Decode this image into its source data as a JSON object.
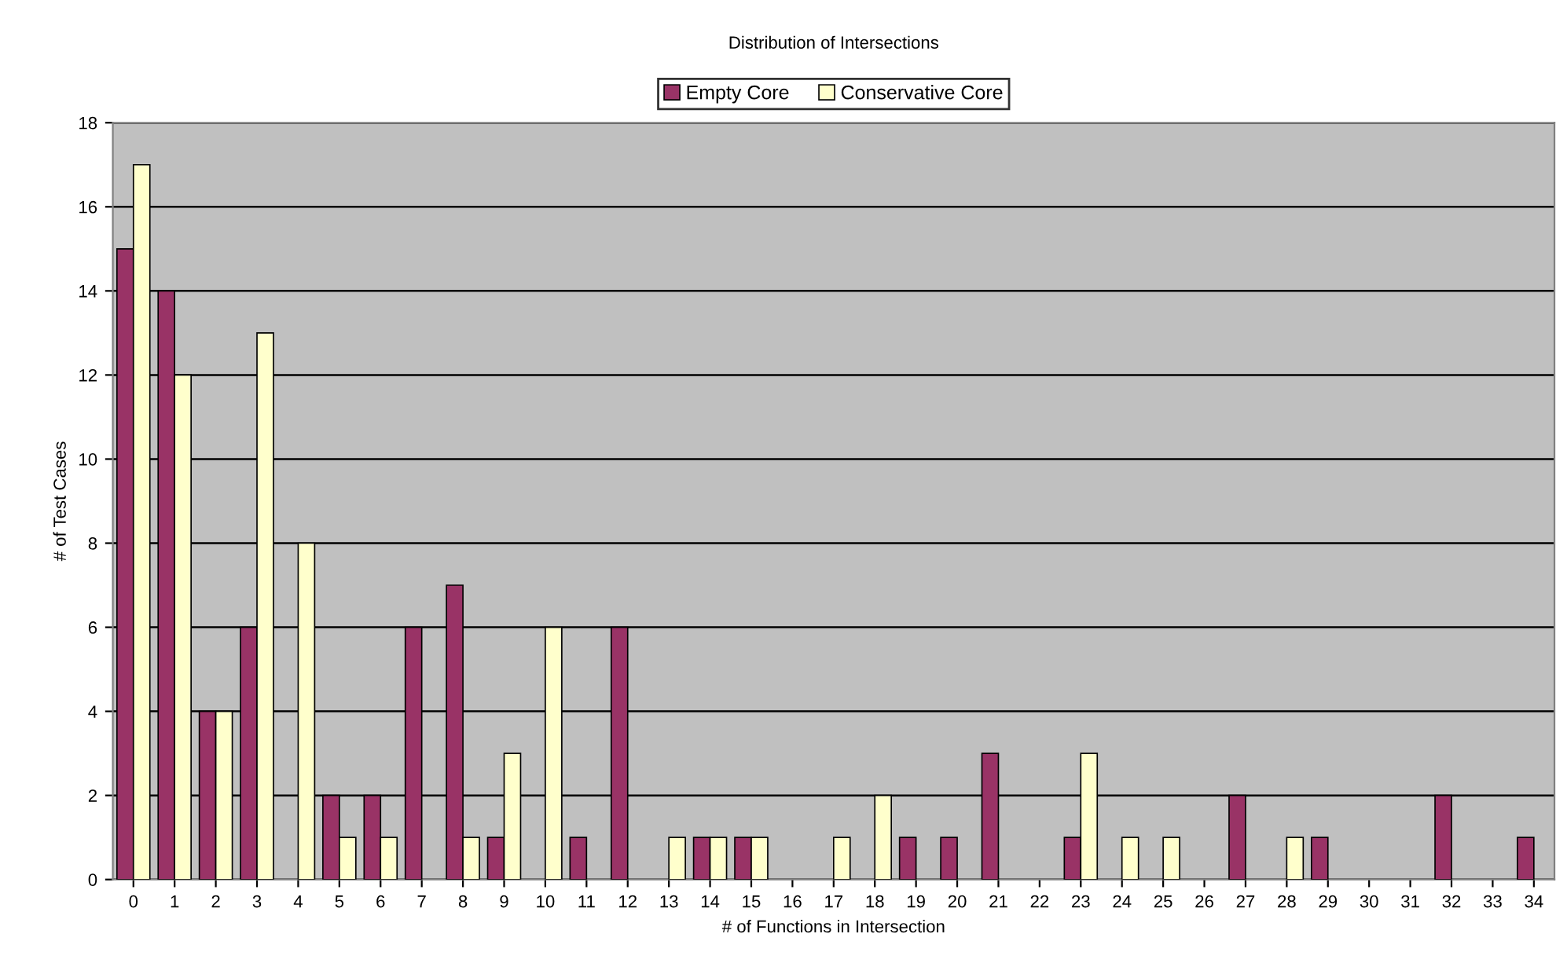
{
  "chart_data": {
    "type": "bar",
    "title": "Distribution of Intersections",
    "xlabel": "# of Functions in Intersection",
    "ylabel": "# of Test Cases",
    "categories": [
      "0",
      "1",
      "2",
      "3",
      "4",
      "5",
      "6",
      "7",
      "8",
      "9",
      "10",
      "11",
      "12",
      "13",
      "14",
      "15",
      "16",
      "17",
      "18",
      "19",
      "20",
      "21",
      "22",
      "23",
      "24",
      "25",
      "26",
      "27",
      "28",
      "29",
      "30",
      "31",
      "32",
      "33",
      "34"
    ],
    "series": [
      {
        "name": "Empty Core",
        "color": "#993366",
        "values": [
          15,
          14,
          4,
          6,
          0,
          2,
          2,
          6,
          7,
          1,
          0,
          1,
          6,
          0,
          1,
          1,
          0,
          0,
          0,
          1,
          1,
          3,
          0,
          1,
          0,
          0,
          0,
          2,
          0,
          1,
          0,
          0,
          2,
          0,
          1
        ]
      },
      {
        "name": "Conservative Core",
        "color": "#ffffcc",
        "values": [
          17,
          12,
          4,
          13,
          8,
          1,
          1,
          0,
          1,
          3,
          6,
          0,
          0,
          1,
          1,
          1,
          0,
          1,
          2,
          0,
          0,
          0,
          0,
          3,
          1,
          1,
          0,
          0,
          1,
          0,
          0,
          0,
          0,
          0,
          0
        ]
      }
    ],
    "ylim": [
      0,
      18
    ],
    "yticks": [
      0,
      2,
      4,
      6,
      8,
      10,
      12,
      14,
      16,
      18
    ],
    "grid": "y",
    "legend": "top"
  }
}
